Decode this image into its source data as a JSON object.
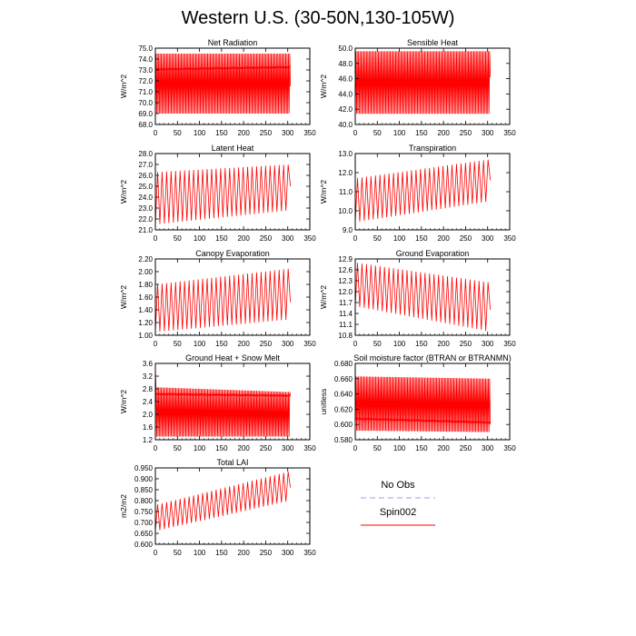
{
  "page": {
    "title": "Western U.S. (30-50N,130-105W)"
  },
  "legend": {
    "entries": [
      {
        "name": "No Obs",
        "color": "#9999ff",
        "dash": true
      },
      {
        "name": "Spin002",
        "color": "#ff0000",
        "dash": false
      }
    ]
  },
  "colors": {
    "series": "#ff0000",
    "obs": "#9999ff",
    "axis": "#000000"
  },
  "chart_data": [
    {
      "type": "line",
      "title": "Net Radiation",
      "xlabel": "",
      "ylabel": "W/m^2",
      "xlim": [
        0,
        350
      ],
      "xticks": [
        0,
        50,
        100,
        150,
        200,
        250,
        300,
        350
      ],
      "ylim": [
        68.0,
        75.0
      ],
      "yticks": [
        "68.0",
        "69.0",
        "70.0",
        "71.0",
        "72.0",
        "73.0",
        "74.0",
        "75.0"
      ],
      "grid": false,
      "series": [
        {
          "name": "Spin002",
          "color": "#ff0000",
          "x_range": [
            0,
            306
          ],
          "period": 3.0,
          "min_start": 69.0,
          "min_end": 69.0,
          "max_start": 74.5,
          "max_end": 74.5,
          "mid_start": 73.1,
          "mid_end": 73.3,
          "end_value": 71.5
        }
      ]
    },
    {
      "type": "line",
      "title": "Sensible Heat",
      "xlabel": "",
      "ylabel": "W/m^2",
      "xlim": [
        0,
        350
      ],
      "xticks": [
        0,
        50,
        100,
        150,
        200,
        250,
        300,
        350
      ],
      "ylim": [
        40.0,
        50.0
      ],
      "yticks": [
        "40.0",
        "42.0",
        "44.0",
        "46.0",
        "48.0",
        "50.0"
      ],
      "grid": false,
      "series": [
        {
          "name": "Spin002",
          "color": "#ff0000",
          "x_range": [
            0,
            306
          ],
          "period": 3.0,
          "min_start": 41.4,
          "min_end": 41.4,
          "max_start": 49.6,
          "max_end": 49.6,
          "end_value": 46.2
        }
      ]
    },
    {
      "type": "line",
      "title": "Latent Heat",
      "xlabel": "",
      "ylabel": "W/m^2",
      "xlim": [
        0,
        350
      ],
      "xticks": [
        0,
        50,
        100,
        150,
        200,
        250,
        300,
        350
      ],
      "ylim": [
        21.0,
        28.0
      ],
      "yticks": [
        "21.0",
        "22.0",
        "23.0",
        "24.0",
        "25.0",
        "26.0",
        "27.0",
        "28.0"
      ],
      "grid": false,
      "series": [
        {
          "name": "Spin002",
          "color": "#ff0000",
          "x_range": [
            0,
            306
          ],
          "period": 10.2,
          "min_start": 21.5,
          "min_end": 22.8,
          "max_start": 26.3,
          "max_end": 27.0,
          "end_value": 25.0
        }
      ]
    },
    {
      "type": "line",
      "title": "Transpiration",
      "xlabel": "",
      "ylabel": "W/m^2",
      "xlim": [
        0,
        350
      ],
      "xticks": [
        0,
        50,
        100,
        150,
        200,
        250,
        300,
        350
      ],
      "ylim": [
        9.0,
        13.0
      ],
      "yticks": [
        "9.0",
        "10.0",
        "11.0",
        "12.0",
        "13.0"
      ],
      "grid": false,
      "series": [
        {
          "name": "Spin002",
          "color": "#ff0000",
          "x_range": [
            0,
            306
          ],
          "period": 10.2,
          "min_start": 9.4,
          "min_end": 10.5,
          "max_start": 11.7,
          "max_end": 12.7,
          "end_value": 11.6
        }
      ]
    },
    {
      "type": "line",
      "title": "Canopy Evaporation",
      "xlabel": "",
      "ylabel": "W/m^2",
      "xlim": [
        0,
        350
      ],
      "xticks": [
        0,
        50,
        100,
        150,
        200,
        250,
        300,
        350
      ],
      "ylim": [
        1.0,
        2.2
      ],
      "yticks": [
        "1.00",
        "1.20",
        "1.40",
        "1.60",
        "1.80",
        "2.00",
        "2.20"
      ],
      "grid": false,
      "series": [
        {
          "name": "Spin002",
          "color": "#ff0000",
          "x_range": [
            0,
            306
          ],
          "period": 10.2,
          "min_start": 1.05,
          "min_end": 1.25,
          "max_start": 1.8,
          "max_end": 2.05,
          "end_value": 1.52
        }
      ]
    },
    {
      "type": "line",
      "title": "Ground Evaporation",
      "xlabel": "",
      "ylabel": "W/m^2",
      "xlim": [
        0,
        350
      ],
      "xticks": [
        0,
        50,
        100,
        150,
        200,
        250,
        300,
        350
      ],
      "ylim": [
        10.8,
        12.9
      ],
      "yticks": [
        "10.8",
        "11.1",
        "11.4",
        "11.7",
        "12.0",
        "12.3",
        "12.6",
        "12.9"
      ],
      "grid": false,
      "series": [
        {
          "name": "Spin002",
          "color": "#ff0000",
          "x_range": [
            0,
            306
          ],
          "period": 10.2,
          "min_start": 11.6,
          "min_end": 10.9,
          "max_start": 12.8,
          "max_end": 12.25,
          "end_value": 11.5
        }
      ]
    },
    {
      "type": "line",
      "title": "Ground Heat + Snow Melt",
      "xlabel": "",
      "ylabel": "W/m^2",
      "xlim": [
        0,
        350
      ],
      "xticks": [
        0,
        50,
        100,
        150,
        200,
        250,
        300,
        350
      ],
      "ylim": [
        1.2,
        3.6
      ],
      "yticks": [
        "1.2",
        "1.6",
        "2.0",
        "2.4",
        "2.8",
        "3.2",
        "3.6"
      ],
      "grid": false,
      "series": [
        {
          "name": "Spin002",
          "color": "#ff0000",
          "x_range": [
            0,
            306
          ],
          "period": 3.0,
          "min_start": 1.3,
          "min_end": 1.3,
          "max_start": 2.85,
          "max_end": 2.7,
          "mid_start": 2.65,
          "mid_end": 2.6,
          "spike_start": 3.4,
          "end_value": 2.6
        }
      ]
    },
    {
      "type": "line",
      "title": "Soil moisture factor (BTRAN or BTRANMN)",
      "xlabel": "",
      "ylabel": "unitless",
      "xlim": [
        0,
        350
      ],
      "xticks": [
        0,
        50,
        100,
        150,
        200,
        250,
        300,
        350
      ],
      "ylim": [
        0.58,
        0.68
      ],
      "yticks": [
        "0.580",
        "0.600",
        "0.620",
        "0.640",
        "0.660",
        "0.680"
      ],
      "grid": false,
      "series": [
        {
          "name": "Spin002",
          "color": "#ff0000",
          "x_range": [
            0,
            306
          ],
          "period": 3.0,
          "min_start": 0.592,
          "min_end": 0.59,
          "max_start": 0.663,
          "max_end": 0.66,
          "mid_start": 0.607,
          "mid_end": 0.602,
          "end_value": 0.6
        }
      ]
    },
    {
      "type": "line",
      "title": "Total LAI",
      "xlabel": "",
      "ylabel": "m2/m2",
      "xlim": [
        0,
        350
      ],
      "xticks": [
        0,
        50,
        100,
        150,
        200,
        250,
        300,
        350
      ],
      "ylim": [
        0.6,
        0.95
      ],
      "yticks": [
        "0.600",
        "0.650",
        "0.700",
        "0.750",
        "0.800",
        "0.850",
        "0.900",
        "0.950"
      ],
      "grid": false,
      "series": [
        {
          "name": "Spin002",
          "color": "#ff0000",
          "x_range": [
            0,
            306
          ],
          "period": 10.2,
          "min_start": 0.66,
          "min_end": 0.8,
          "max_start": 0.78,
          "max_end": 0.935,
          "end_value": 0.86
        }
      ]
    }
  ]
}
